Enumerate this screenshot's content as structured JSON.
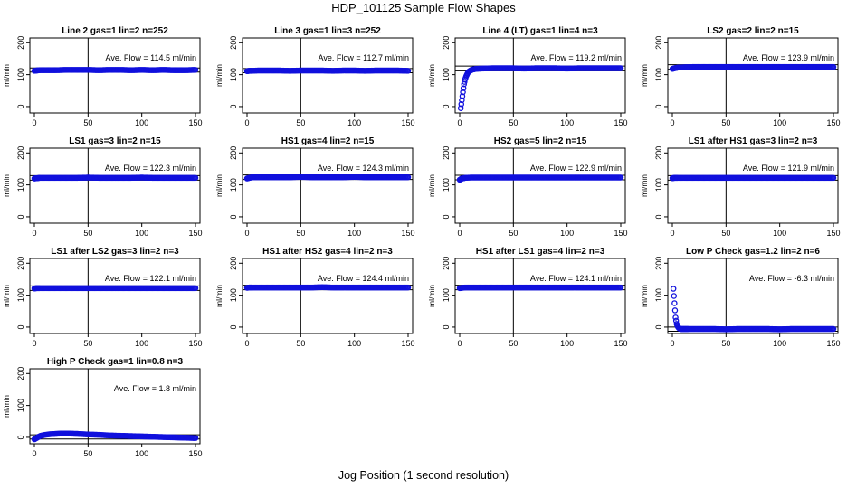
{
  "figure": {
    "title": "HDP_101125  Sample Flow Shapes",
    "xlabel": "Jog Position (1 second resolution)"
  },
  "chart_data": [
    {
      "type": "scatter",
      "title": "Line 2 gas=1 lin=2 n=252",
      "ylabel": "ml/min",
      "annotation": "Ave. Flow =  114.5  ml/min",
      "ave_flow": 114.5,
      "xlim": [
        0,
        150
      ],
      "ylim": [
        -20,
        215
      ],
      "xticks": [
        0,
        50,
        100,
        150
      ],
      "yticks": [
        0,
        100,
        200
      ],
      "vline": 50,
      "hlines": [
        108,
        121
      ],
      "series": [
        {
          "name": "flow",
          "x": [
            0,
            2,
            5,
            10,
            20,
            30,
            40,
            50,
            60,
            70,
            80,
            90,
            100,
            110,
            120,
            130,
            140,
            150
          ],
          "y": [
            112,
            113,
            114,
            114,
            114,
            115,
            115,
            115,
            114,
            115,
            115,
            114,
            115,
            114,
            115,
            114,
            114,
            115
          ]
        }
      ]
    },
    {
      "type": "scatter",
      "title": "Line 3 gas=1 lin=3 n=252",
      "ylabel": "ml/min",
      "annotation": "Ave. Flow =  112.7  ml/min",
      "ave_flow": 112.7,
      "xlim": [
        0,
        150
      ],
      "ylim": [
        -20,
        215
      ],
      "xticks": [
        0,
        50,
        100,
        150
      ],
      "yticks": [
        0,
        100,
        200
      ],
      "vline": 50,
      "hlines": [
        106,
        119
      ],
      "series": [
        {
          "name": "flow",
          "x": [
            0,
            2,
            5,
            10,
            20,
            30,
            40,
            50,
            60,
            70,
            80,
            90,
            100,
            110,
            120,
            130,
            140,
            150
          ],
          "y": [
            111,
            112,
            112,
            113,
            113,
            113,
            112,
            113,
            113,
            113,
            112,
            113,
            113,
            112,
            113,
            113,
            113,
            112
          ]
        }
      ]
    },
    {
      "type": "scatter",
      "title": "Line 4 (LT) gas=1 lin=4 n=3",
      "ylabel": "ml/min",
      "annotation": "Ave. Flow =  119.2  ml/min",
      "ave_flow": 119.2,
      "xlim": [
        0,
        150
      ],
      "ylim": [
        -20,
        215
      ],
      "xticks": [
        0,
        50,
        100,
        150
      ],
      "yticks": [
        0,
        100,
        200
      ],
      "vline": 50,
      "hlines": [
        112,
        127
      ],
      "series": [
        {
          "name": "flow",
          "x": [
            1,
            2,
            3,
            4,
            5,
            6,
            7,
            8,
            10,
            12,
            15,
            20,
            30,
            40,
            50,
            60,
            70,
            80,
            90,
            100,
            110,
            120,
            130,
            140,
            150
          ],
          "y": [
            -5,
            20,
            45,
            70,
            85,
            95,
            102,
            108,
            113,
            116,
            118,
            119,
            120,
            120,
            120,
            119,
            120,
            120,
            120,
            119,
            120,
            120,
            120,
            120,
            120
          ]
        }
      ]
    },
    {
      "type": "scatter",
      "title": "LS2 gas=2 lin=2 n=15",
      "ylabel": "ml/min",
      "annotation": "Ave. Flow =  123.9  ml/min",
      "ave_flow": 123.9,
      "xlim": [
        0,
        150
      ],
      "ylim": [
        -20,
        215
      ],
      "xticks": [
        0,
        50,
        100,
        150
      ],
      "yticks": [
        0,
        100,
        200
      ],
      "vline": 50,
      "hlines": [
        117,
        131
      ],
      "series": [
        {
          "name": "flow",
          "x": [
            0,
            2,
            5,
            10,
            20,
            30,
            40,
            50,
            60,
            70,
            80,
            90,
            100,
            110,
            120,
            130,
            140,
            150
          ],
          "y": [
            118,
            120,
            122,
            123,
            124,
            124,
            124,
            124,
            124,
            124,
            124,
            124,
            124,
            124,
            124,
            124,
            124,
            124
          ]
        }
      ]
    },
    {
      "type": "scatter",
      "title": "LS1 gas=3 lin=2 n=15",
      "ylabel": "ml/min",
      "annotation": "Ave. Flow =  122.3  ml/min",
      "ave_flow": 122.3,
      "xlim": [
        0,
        150
      ],
      "ylim": [
        -20,
        215
      ],
      "xticks": [
        0,
        50,
        100,
        150
      ],
      "yticks": [
        0,
        100,
        200
      ],
      "vline": 50,
      "hlines": [
        115,
        129
      ],
      "series": [
        {
          "name": "flow",
          "x": [
            0,
            2,
            5,
            10,
            20,
            30,
            40,
            50,
            60,
            70,
            80,
            90,
            100,
            110,
            120,
            130,
            140,
            150
          ],
          "y": [
            120,
            121,
            122,
            122,
            122,
            122,
            122,
            123,
            122,
            122,
            122,
            122,
            123,
            122,
            122,
            122,
            122,
            122
          ]
        }
      ]
    },
    {
      "type": "scatter",
      "title": "HS1 gas=4 lin=2 n=15",
      "ylabel": "ml/min",
      "annotation": "Ave. Flow =  124.3  ml/min",
      "ave_flow": 124.3,
      "xlim": [
        0,
        150
      ],
      "ylim": [
        -20,
        215
      ],
      "xticks": [
        0,
        50,
        100,
        150
      ],
      "yticks": [
        0,
        100,
        200
      ],
      "vline": 50,
      "hlines": [
        117,
        131
      ],
      "series": [
        {
          "name": "flow",
          "x": [
            0,
            2,
            5,
            10,
            20,
            30,
            40,
            50,
            60,
            70,
            80,
            90,
            100,
            110,
            120,
            130,
            140,
            150
          ],
          "y": [
            120,
            122,
            124,
            124,
            124,
            124,
            124,
            125,
            124,
            124,
            124,
            124,
            125,
            124,
            124,
            124,
            124,
            124
          ]
        }
      ]
    },
    {
      "type": "scatter",
      "title": "HS2 gas=5 lin=2 n=15",
      "ylabel": "ml/min",
      "annotation": "Ave. Flow =  122.9  ml/min",
      "ave_flow": 122.9,
      "xlim": [
        0,
        150
      ],
      "ylim": [
        -20,
        215
      ],
      "xticks": [
        0,
        50,
        100,
        150
      ],
      "yticks": [
        0,
        100,
        200
      ],
      "vline": 50,
      "hlines": [
        116,
        130
      ],
      "series": [
        {
          "name": "flow",
          "x": [
            0,
            2,
            5,
            10,
            20,
            30,
            40,
            50,
            60,
            70,
            80,
            90,
            100,
            110,
            120,
            130,
            140,
            150
          ],
          "y": [
            116,
            120,
            122,
            123,
            123,
            123,
            123,
            123,
            123,
            123,
            123,
            123,
            123,
            123,
            123,
            123,
            123,
            123
          ]
        }
      ]
    },
    {
      "type": "scatter",
      "title": "LS1 after HS1 gas=3 lin=2 n=3",
      "ylabel": "ml/min",
      "annotation": "Ave. Flow =  121.9  ml/min",
      "ave_flow": 121.9,
      "xlim": [
        0,
        150
      ],
      "ylim": [
        -20,
        215
      ],
      "xticks": [
        0,
        50,
        100,
        150
      ],
      "yticks": [
        0,
        100,
        200
      ],
      "vline": 50,
      "hlines": [
        115,
        129
      ],
      "series": [
        {
          "name": "flow",
          "x": [
            0,
            2,
            5,
            10,
            20,
            30,
            40,
            50,
            60,
            70,
            80,
            90,
            100,
            110,
            120,
            130,
            140,
            150
          ],
          "y": [
            121,
            122,
            122,
            122,
            122,
            122,
            122,
            122,
            122,
            122,
            122,
            122,
            122,
            122,
            122,
            122,
            122,
            122
          ]
        }
      ]
    },
    {
      "type": "scatter",
      "title": "LS1 after LS2 gas=3 lin=2 n=3",
      "ylabel": "ml/min",
      "annotation": "Ave. Flow =  122.1  ml/min",
      "ave_flow": 122.1,
      "xlim": [
        0,
        150
      ],
      "ylim": [
        -20,
        215
      ],
      "xticks": [
        0,
        50,
        100,
        150
      ],
      "yticks": [
        0,
        100,
        200
      ],
      "vline": 50,
      "hlines": [
        115,
        129
      ],
      "series": [
        {
          "name": "flow",
          "x": [
            0,
            2,
            5,
            10,
            20,
            30,
            40,
            50,
            60,
            70,
            80,
            90,
            100,
            110,
            120,
            130,
            140,
            150
          ],
          "y": [
            121,
            122,
            122,
            122,
            122,
            122,
            122,
            122,
            122,
            122,
            122,
            122,
            122,
            122,
            122,
            122,
            122,
            122
          ]
        }
      ]
    },
    {
      "type": "scatter",
      "title": "HS1 after HS2 gas=4 lin=2 n=3",
      "ylabel": "ml/min",
      "annotation": "Ave. Flow =  124.4  ml/min",
      "ave_flow": 124.4,
      "xlim": [
        0,
        150
      ],
      "ylim": [
        -20,
        215
      ],
      "xticks": [
        0,
        50,
        100,
        150
      ],
      "yticks": [
        0,
        100,
        200
      ],
      "vline": 50,
      "hlines": [
        117,
        131
      ],
      "series": [
        {
          "name": "flow",
          "x": [
            0,
            2,
            5,
            10,
            20,
            30,
            40,
            50,
            60,
            70,
            80,
            90,
            100,
            110,
            120,
            130,
            140,
            150
          ],
          "y": [
            123,
            124,
            124,
            124,
            124,
            124,
            124,
            124,
            124,
            125,
            124,
            124,
            124,
            124,
            124,
            124,
            124,
            124
          ]
        }
      ]
    },
    {
      "type": "scatter",
      "title": "HS1 after LS1 gas=4 lin=2 n=3",
      "ylabel": "ml/min",
      "annotation": "Ave. Flow =  124.1  ml/min",
      "ave_flow": 124.1,
      "xlim": [
        0,
        150
      ],
      "ylim": [
        -20,
        215
      ],
      "xticks": [
        0,
        50,
        100,
        150
      ],
      "yticks": [
        0,
        100,
        200
      ],
      "vline": 50,
      "hlines": [
        117,
        131
      ],
      "series": [
        {
          "name": "flow",
          "x": [
            0,
            2,
            5,
            10,
            20,
            30,
            40,
            50,
            60,
            70,
            80,
            90,
            100,
            110,
            120,
            130,
            140,
            150
          ],
          "y": [
            122,
            123,
            124,
            124,
            124,
            124,
            124,
            124,
            124,
            124,
            124,
            124,
            124,
            124,
            124,
            124,
            124,
            124
          ]
        }
      ]
    },
    {
      "type": "scatter",
      "title": "Low P Check gas=1.2 lin=2 n=6",
      "ylabel": "ml/min",
      "annotation": "Ave. Flow =  -6.3  ml/min",
      "ave_flow": -6.3,
      "xlim": [
        0,
        150
      ],
      "ylim": [
        -20,
        215
      ],
      "xticks": [
        0,
        50,
        100,
        150
      ],
      "yticks": [
        0,
        100,
        200
      ],
      "vline": 50,
      "hlines": [
        -13,
        0
      ],
      "series": [
        {
          "name": "flow",
          "x": [
            1,
            2,
            3,
            4,
            5,
            6,
            7,
            8,
            10,
            12,
            15,
            20,
            30,
            40,
            50,
            60,
            70,
            80,
            90,
            100,
            110,
            120,
            130,
            140,
            150
          ],
          "y": [
            120,
            75,
            30,
            10,
            2,
            -3,
            -5,
            -6,
            -6,
            -6,
            -6,
            -6,
            -6,
            -6,
            -7,
            -6,
            -6,
            -6,
            -6,
            -7,
            -6,
            -6,
            -6,
            -6,
            -6
          ]
        }
      ]
    },
    {
      "type": "scatter",
      "title": "High P Check gas=1 lin=0.8 n=3",
      "ylabel": "ml/min",
      "annotation": "Ave. Flow =  1.8  ml/min",
      "ave_flow": 1.8,
      "xlim": [
        0,
        150
      ],
      "ylim": [
        -20,
        215
      ],
      "xticks": [
        0,
        50,
        100,
        150
      ],
      "yticks": [
        0,
        100,
        200
      ],
      "vline": 50,
      "hlines": [
        -5,
        8
      ],
      "series": [
        {
          "name": "flow",
          "x": [
            0,
            2,
            4,
            6,
            10,
            15,
            20,
            25,
            30,
            40,
            50,
            60,
            70,
            80,
            90,
            100,
            110,
            120,
            130,
            140,
            150
          ],
          "y": [
            -6,
            -2,
            2,
            5,
            8,
            10,
            11,
            12,
            12,
            11,
            9,
            8,
            6,
            5,
            4,
            3,
            2,
            1,
            0,
            -1,
            -2
          ]
        }
      ]
    }
  ]
}
